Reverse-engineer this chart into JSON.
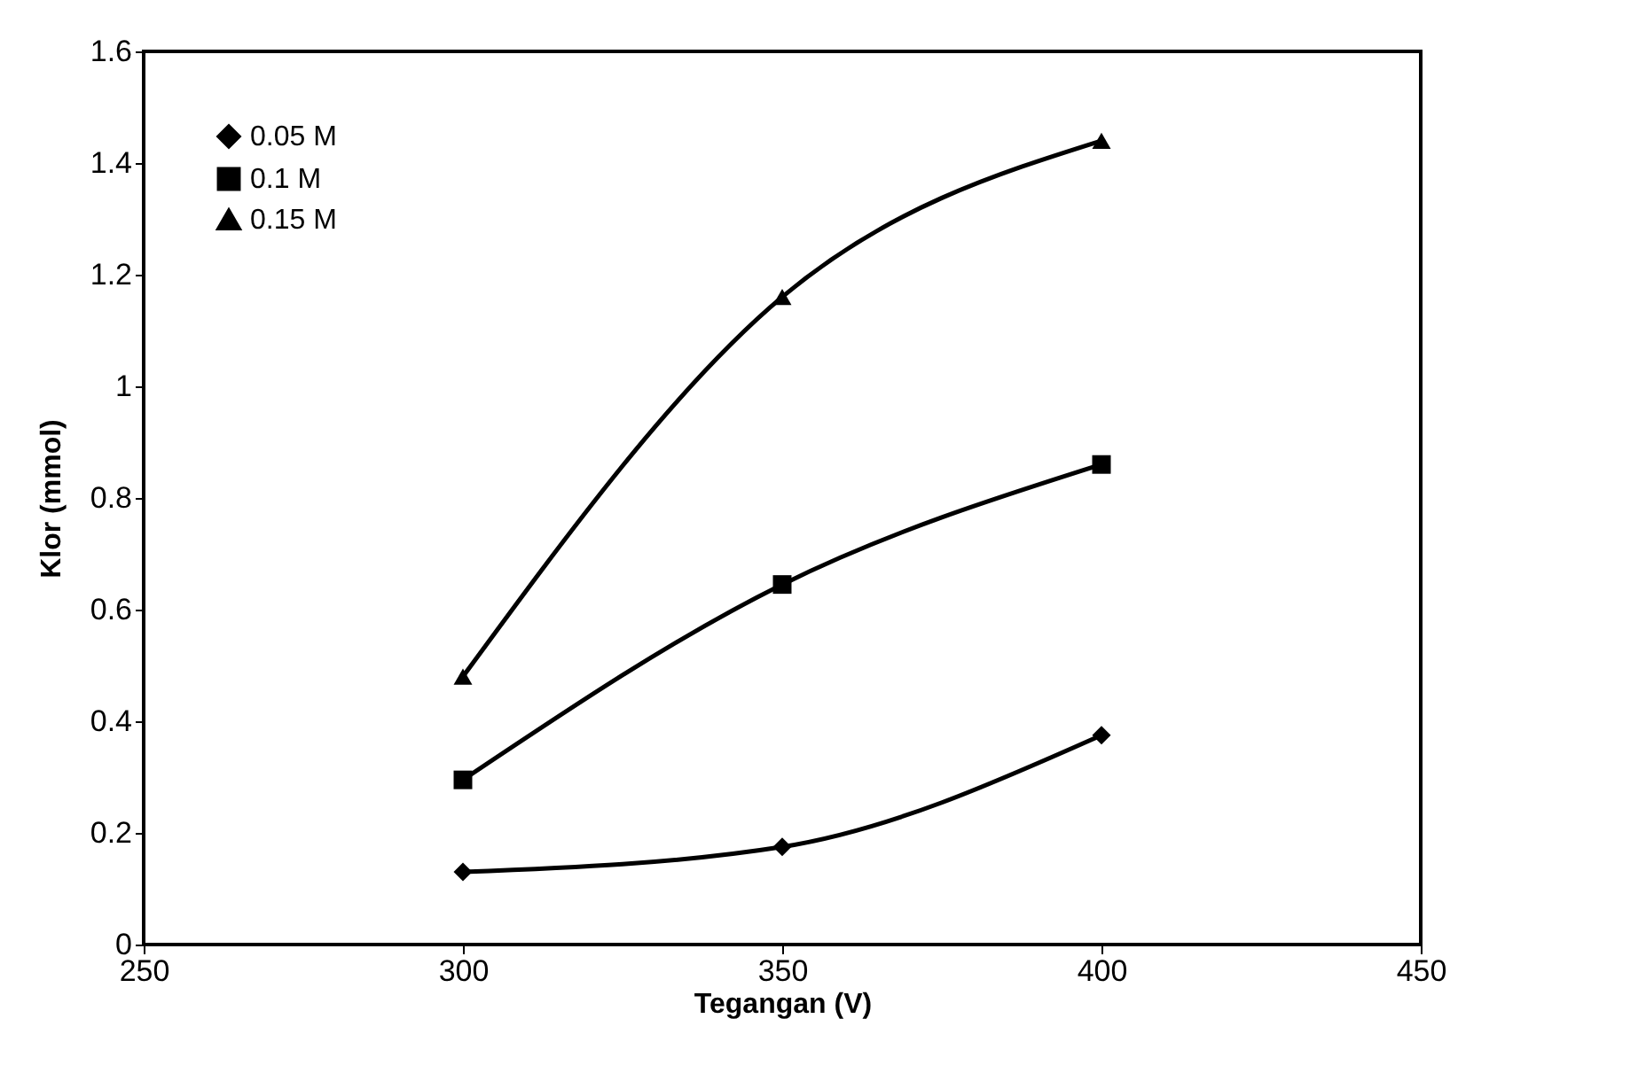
{
  "chart_data": {
    "type": "line",
    "xlabel": "Tegangan (V)",
    "ylabel": "Klor (mmol)",
    "x": [
      300,
      350,
      400
    ],
    "series": [
      {
        "name": "0.05 M",
        "color": "#000000",
        "marker": "diamond",
        "values": [
          0.13,
          0.175,
          0.375
        ]
      },
      {
        "name": "0.1 M",
        "color": "#000000",
        "marker": "square",
        "values": [
          0.295,
          0.645,
          0.86
        ]
      },
      {
        "name": "0.15 M",
        "color": "#000000",
        "marker": "triangle",
        "values": [
          0.48,
          1.16,
          1.44
        ]
      }
    ],
    "xlim": [
      250,
      450
    ],
    "xticks": [
      250,
      300,
      350,
      400,
      450
    ],
    "ylim": [
      0,
      1.6
    ],
    "yticks": [
      0,
      0.2,
      0.4,
      0.6,
      0.8,
      1,
      1.2,
      1.4,
      1.6
    ],
    "grid": false,
    "legend": "top left",
    "line_style": "solid"
  }
}
